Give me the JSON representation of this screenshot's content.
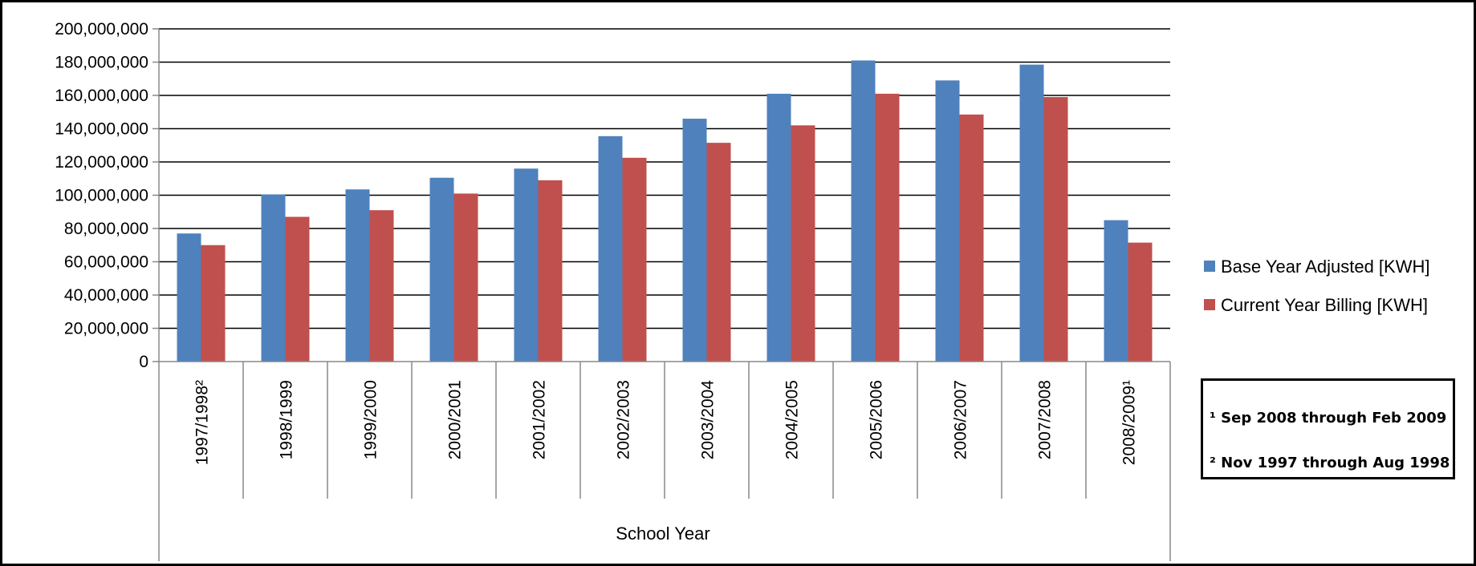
{
  "chart_data": {
    "type": "bar",
    "title": "",
    "xlabel": "School Year",
    "ylabel": "",
    "ylim": [
      0,
      200000000
    ],
    "yticks": [
      0,
      20000000,
      40000000,
      60000000,
      80000000,
      100000000,
      120000000,
      140000000,
      160000000,
      180000000,
      200000000
    ],
    "ytick_labels": [
      "0",
      "20,000,000",
      "40,000,000",
      "60,000,000",
      "80,000,000",
      "100,000,000",
      "120,000,000",
      "140,000,000",
      "160,000,000",
      "180,000,000",
      "200,000,000"
    ],
    "grid": true,
    "legend_position": "right",
    "categories": [
      "1997/1998²",
      "1998/1999",
      "1999/2000",
      "2000/2001",
      "2001/2002",
      "2002/2003",
      "2003/2004",
      "2004/2005",
      "2005/2006",
      "2006/2007",
      "2007/2008",
      "2008/2009¹"
    ],
    "series": [
      {
        "name": "Base Year Adjusted [KWH]",
        "color": "#4f81bd",
        "values": [
          77000000,
          100500000,
          103500000,
          110500000,
          116000000,
          135500000,
          146000000,
          161000000,
          181000000,
          169000000,
          178500000,
          85000000
        ]
      },
      {
        "name": "Current Year Billing [KWH]",
        "color": "#c0504d",
        "values": [
          70000000,
          87000000,
          91000000,
          101000000,
          109000000,
          122500000,
          131500000,
          142000000,
          161000000,
          148500000,
          159000000,
          71500000
        ]
      }
    ]
  },
  "footnotes": {
    "note1": "¹ Sep 2008 through Feb 2009",
    "note2": "² Nov 1997 through Aug 1998"
  }
}
